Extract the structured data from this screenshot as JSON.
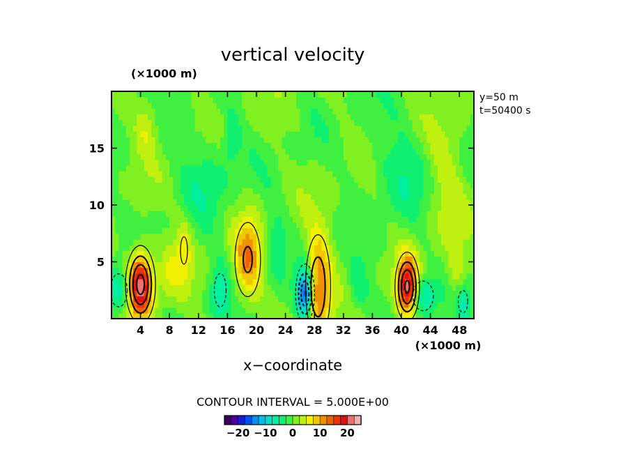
{
  "chart_data": {
    "type": "heatmap",
    "title": "vertical velocity",
    "xlabel": "x−coordinate",
    "x_unit": "(×1000 m)",
    "y_unit": "(×1000 m)",
    "xlim": [
      0,
      50
    ],
    "ylim": [
      0,
      20
    ],
    "x_ticks": [
      4,
      8,
      12,
      16,
      20,
      24,
      28,
      32,
      36,
      40,
      44,
      48
    ],
    "y_ticks": [
      5,
      10,
      15
    ],
    "info_lines": [
      "y=50  m",
      "t=50400  s"
    ],
    "contour_interval": "CONTOUR INTERVAL = 5.000E+00",
    "colorbar": {
      "range": [
        -25,
        25
      ],
      "ticks": [
        -20,
        -10,
        0,
        10,
        20
      ],
      "tick_labels": [
        "−20",
        "−10",
        "0",
        "10",
        "20"
      ],
      "colors": [
        "#3a0060",
        "#4a00a0",
        "#1020d0",
        "#0050f0",
        "#0090f0",
        "#00c0e8",
        "#00e0c8",
        "#00f0a0",
        "#10f070",
        "#40f040",
        "#80f020",
        "#c0f010",
        "#f0f000",
        "#f0c800",
        "#f09000",
        "#f06000",
        "#f03000",
        "#e01010",
        "#f07070",
        "#f0b0b0"
      ]
    },
    "features": [
      {
        "x": 4.0,
        "y": 3.0,
        "peak": 22,
        "sx": 1.2,
        "sy": 2.0
      },
      {
        "x": 40.8,
        "y": 2.8,
        "peak": 21,
        "sx": 1.0,
        "sy": 1.8
      },
      {
        "x": 28.5,
        "y": 2.8,
        "peak": 14,
        "sx": 1.2,
        "sy": 3.2
      },
      {
        "x": 18.8,
        "y": 5.2,
        "peak": 11,
        "sx": 1.4,
        "sy": 2.6
      },
      {
        "x": 26.7,
        "y": 2.2,
        "peak": -19,
        "sx": 0.8,
        "sy": 1.6
      },
      {
        "x": 1.0,
        "y": 2.5,
        "peak": -8,
        "sx": 1.2,
        "sy": 1.5
      },
      {
        "x": 43.0,
        "y": 2.0,
        "peak": -9,
        "sx": 1.3,
        "sy": 1.2
      },
      {
        "x": 15.0,
        "y": 2.5,
        "peak": -7,
        "sx": 1.0,
        "sy": 1.8
      },
      {
        "x": 48.5,
        "y": 1.5,
        "peak": -7,
        "sx": 0.8,
        "sy": 1.2
      },
      {
        "x": 34.0,
        "y": 2.8,
        "peak": -5,
        "sx": 1.0,
        "sy": 1.5
      },
      {
        "x": 10.0,
        "y": 6.0,
        "peak": 6,
        "sx": 0.8,
        "sy": 2.0
      },
      {
        "x": 47.5,
        "y": 3.5,
        "peak": 5,
        "sx": 0.8,
        "sy": 2.0
      },
      {
        "x": 4.8,
        "y": 17.0,
        "peak": 5,
        "sx": 1.0,
        "sy": 1.6
      },
      {
        "x": 22.5,
        "y": 6.5,
        "peak": -5,
        "sx": 1.0,
        "sy": 2.0
      },
      {
        "x": 16.5,
        "y": 16.0,
        "peak": -5,
        "sx": 0.8,
        "sy": 1.6
      },
      {
        "x": 13.0,
        "y": 12.5,
        "peak": -4,
        "sx": 2.5,
        "sy": 2.5
      },
      {
        "x": 40.0,
        "y": 13.0,
        "peak": -4,
        "sx": 3.0,
        "sy": 3.0
      },
      {
        "x": 8.0,
        "y": 4.0,
        "peak": 4,
        "sx": 1.0,
        "sy": 2.0
      },
      {
        "x": 46.0,
        "y": 12.0,
        "peak": 4,
        "sx": 2.0,
        "sy": 4.0
      }
    ]
  }
}
